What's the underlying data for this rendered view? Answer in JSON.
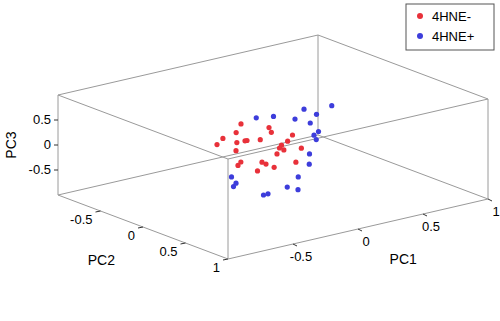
{
  "chart_data": {
    "type": "scatter3d",
    "x_label": "PC1",
    "y_label": "PC2",
    "z_label": "PC3",
    "xlim": [
      -1,
      1
    ],
    "xticks": [
      -0.5,
      0,
      0.5,
      1
    ],
    "ylim": [
      -1,
      1
    ],
    "yticks": [
      -0.5,
      0,
      0.5,
      1
    ],
    "zlim": [
      -1,
      1
    ],
    "zticks": [
      -0.5,
      0,
      0.5
    ],
    "legend": "northeast",
    "marker": "dot",
    "series": [
      {
        "name": "4HNE-",
        "color": "#e8313a",
        "x": [
          -0.35,
          -0.3,
          -0.25,
          -0.2,
          -0.15,
          -0.1,
          -0.05,
          0,
          0.05,
          0.1,
          -0.4,
          -0.28,
          -0.18,
          -0.08,
          0.02,
          0.12,
          -0.22,
          -0.12,
          -0.02,
          0.08,
          -0.32,
          -0.15,
          0.0,
          -0.25,
          0.15
        ],
        "y": [
          0.1,
          -0.2,
          0.3,
          0.0,
          -0.1,
          0.2,
          -0.3,
          0.1,
          0.0,
          -0.2,
          0.2,
          0.05,
          -0.15,
          0.25,
          -0.05,
          0.15,
          0.35,
          -0.25,
          0.3,
          0.05,
          -0.1,
          0.1,
          -0.15,
          0.2,
          0.0
        ],
        "z": [
          0.2,
          0.1,
          0.0,
          0.25,
          0.15,
          0.05,
          0.3,
          0.1,
          -0.05,
          0.2,
          0.0,
          -0.1,
          0.1,
          0.15,
          0.25,
          0.0,
          -0.05,
          0.2,
          -0.1,
          0.1,
          0.3,
          -0.15,
          0.05,
          -0.2,
          0.15
        ]
      },
      {
        "name": "4HNE+",
        "color": "#3d3ddb",
        "x": [
          0.2,
          0.3,
          0.4,
          0.5,
          0.35,
          0.25,
          0.45,
          -0.5,
          -0.4,
          -0.3,
          -0.45,
          -0.2,
          -0.1,
          0.1,
          0.55,
          0.15,
          -0.35,
          -0.25,
          0.3,
          0.05
        ],
        "y": [
          -0.3,
          -0.2,
          -0.1,
          -0.4,
          0.0,
          0.1,
          -0.25,
          0.3,
          0.5,
          0.4,
          0.2,
          0.6,
          0.45,
          -0.35,
          -0.15,
          0.2,
          0.1,
          0.55,
          0.05,
          0.35
        ],
        "z": [
          0.3,
          0.25,
          0.35,
          0.2,
          0.1,
          0.15,
          0.05,
          -0.3,
          -0.4,
          -0.5,
          -0.2,
          -0.35,
          -0.25,
          0.3,
          0.4,
          -0.1,
          -0.45,
          -0.3,
          0.0,
          -0.15
        ]
      }
    ]
  }
}
